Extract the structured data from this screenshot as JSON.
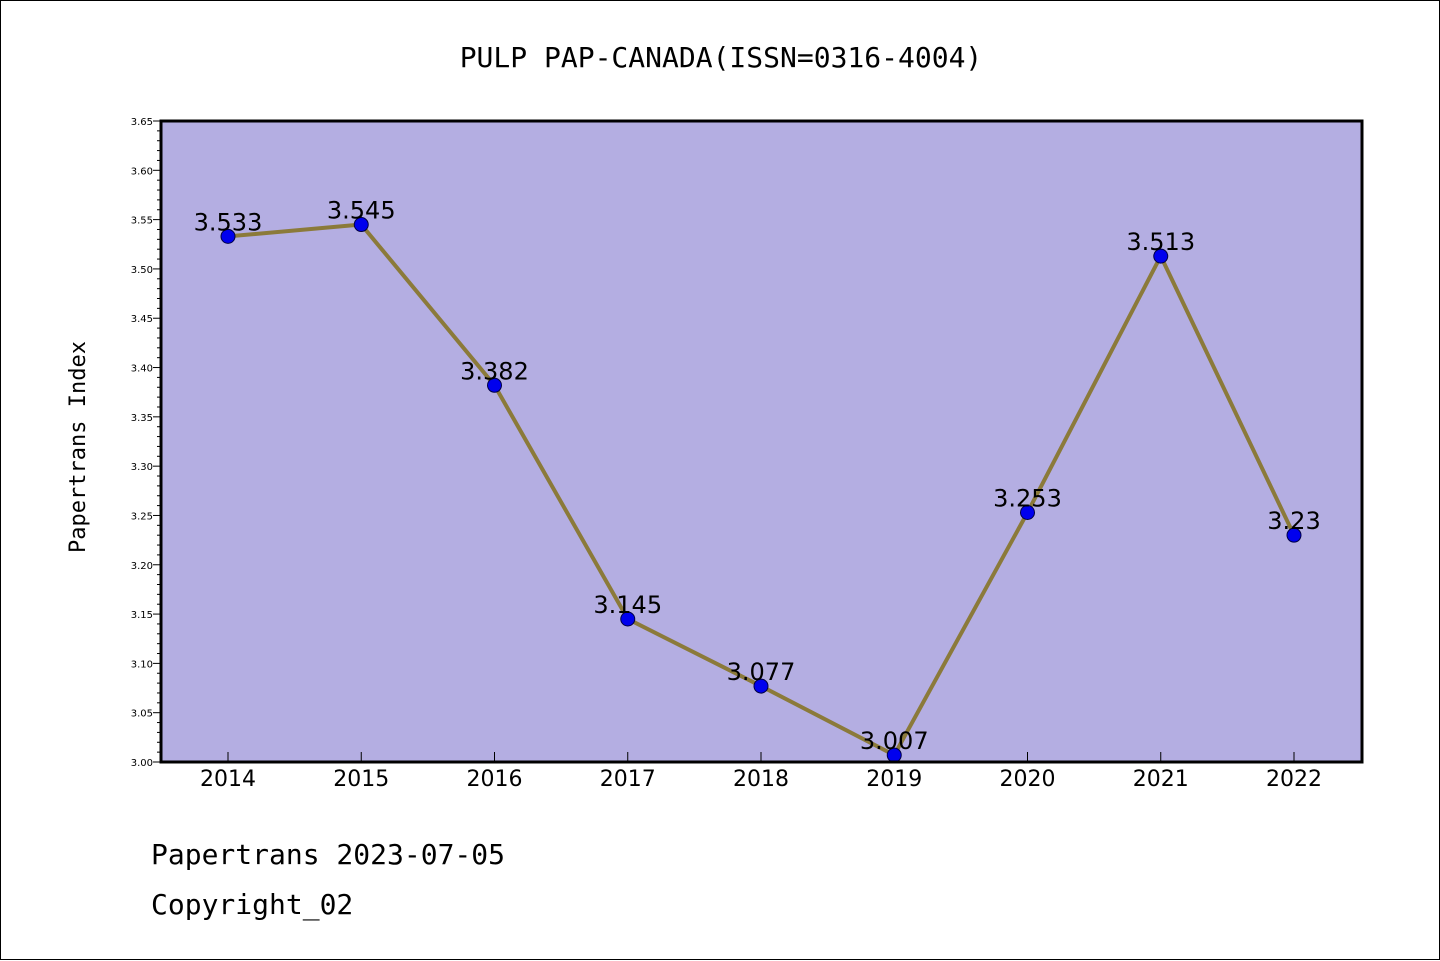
{
  "chart_data": {
    "type": "line",
    "title": "PULP PAP-CANADA(ISSN=0316-4004)",
    "xlabel": "",
    "ylabel": "Papertrans Index",
    "categories": [
      "2014",
      "2015",
      "2016",
      "2017",
      "2018",
      "2019",
      "2020",
      "2021",
      "2022"
    ],
    "values": [
      3.533,
      3.545,
      3.382,
      3.145,
      3.077,
      3.007,
      3.253,
      3.513,
      3.23
    ],
    "value_labels": [
      "3.533",
      "3.545",
      "3.382",
      "3.145",
      "3.077",
      "3.007",
      "3.253",
      "3.513",
      "3.23"
    ],
    "ylim": [
      3.0,
      3.65
    ],
    "yticks": [
      "3.00",
      "3.05",
      "3.10",
      "3.15",
      "3.20",
      "3.25",
      "3.30",
      "3.35",
      "3.40",
      "3.45",
      "3.50",
      "3.55",
      "3.60",
      "3.65"
    ],
    "grid": false,
    "colors": {
      "plot_background": "#b4aee2",
      "line": "#8b7a3a",
      "marker": "#0000ee"
    }
  },
  "footer": {
    "line1": "Papertrans 2023-07-05",
    "line2": "Copyright_02"
  }
}
